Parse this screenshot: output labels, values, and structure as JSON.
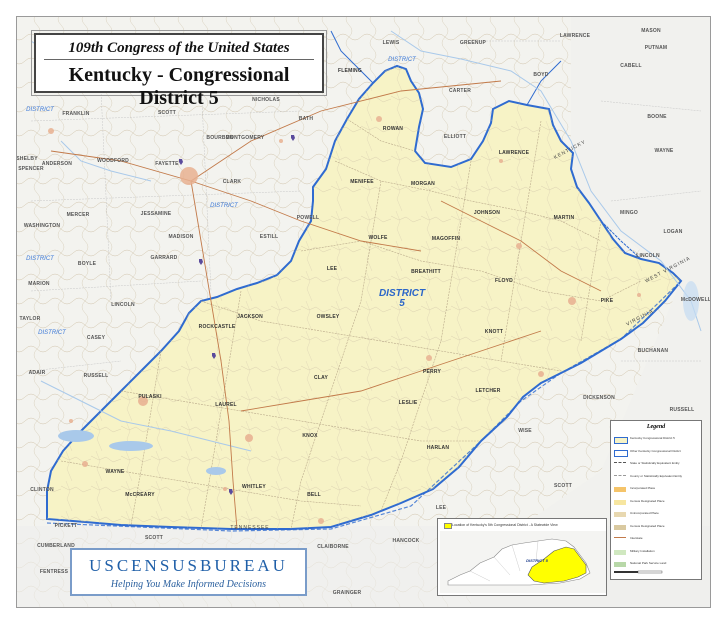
{
  "title": {
    "line1": "109th Congress of the United States",
    "line2": "Kentucky - Congressional District 5"
  },
  "district": {
    "label": "DISTRICT",
    "number": "5",
    "fill": "#f7f3c6",
    "boundary_color": "#2f6bd0"
  },
  "counties_in_district": [
    "FLEMING",
    "ROWAN",
    "MENIFEE",
    "MORGAN",
    "JOHNSON",
    "MARTIN",
    "WOLFE",
    "MAGOFFIN",
    "LEE",
    "BREATHITT",
    "FLOYD",
    "PIKE",
    "OWSLEY",
    "KNOTT",
    "JACKSON",
    "ROCKCASTLE",
    "CLAY",
    "PERRY",
    "LETCHER",
    "LESLIE",
    "PULASKI",
    "LAUREL",
    "KNOX",
    "HARLAN",
    "WAYNE",
    "McCREARY",
    "WHITLEY",
    "BELL",
    "LAWRENCE"
  ],
  "counties_outside": [
    "LEWIS",
    "GREENUP",
    "LAWRENCE",
    "MASON",
    "PUTNAM",
    "CABELL",
    "BOYD",
    "CARTER",
    "ELLIOTT",
    "BATH",
    "NICHOLAS",
    "SCOTT",
    "FRANKLIN",
    "BOURBON",
    "MONTGOMERY",
    "WOODFORD",
    "FAYETTE",
    "CLARK",
    "SHELBY",
    "SPENCER",
    "ANDERSON",
    "MERCER",
    "JESSAMINE",
    "POWELL",
    "ESTILL",
    "MADISON",
    "WASHINGTON",
    "BOYLE",
    "GARRARD",
    "MARION",
    "LINCOLN",
    "TAYLOR",
    "CASEY",
    "ADAIR",
    "RUSSELL",
    "CLINTON",
    "CUMBERLAND",
    "PICKETT",
    "SCOTT",
    "FENTRESS",
    "CAMPBELL",
    "CLAIBORNE",
    "HANCOCK",
    "GRAINGER",
    "LEE",
    "WISE",
    "SCOTT",
    "DICKENSON",
    "BUCHANAN",
    "RUSSELL",
    "McDOWELL",
    "MINGO",
    "LOGAN",
    "LINCOLN",
    "BOONE",
    "WAYNE"
  ],
  "state_labels": [
    "KENTUCKY",
    "TENNESSEE",
    "VIRGINIA",
    "WEST VIRGINIA"
  ],
  "other_district_labels": [
    "DISTRICT",
    "DISTRICT",
    "DISTRICT",
    "DISTRICT",
    "DISTRICT"
  ],
  "census": {
    "name": "USCENSUSBUREAU",
    "tagline": "Helping You Make Informed Decisions"
  },
  "legend": {
    "title": "Legend",
    "items": [
      "Kentucky Congressional District 5",
      "Other Kentucky Congressional District",
      "State or Statistically Equivalent Entity",
      "County or Statistically Equivalent Entity",
      "Incorporated Place",
      "Census Designated Place",
      "Unincorporated Place",
      "Census Designated Place",
      "Interstate",
      "Military Installation",
      "National Park Service Land"
    ]
  },
  "inset": {
    "caption": "Location of Kentucky's 5th Congressional District - A Statewide View",
    "label": "DISTRICT 5"
  },
  "colors": {
    "district_fill": "#f7f3c6",
    "outside_fill": "#f3f3ef",
    "boundary": "#2f6bd0",
    "road": "#b08a5a",
    "water": "#a9c9ea",
    "census_blue": "#1f5fa8",
    "inset_highlight": "#ffff00"
  }
}
